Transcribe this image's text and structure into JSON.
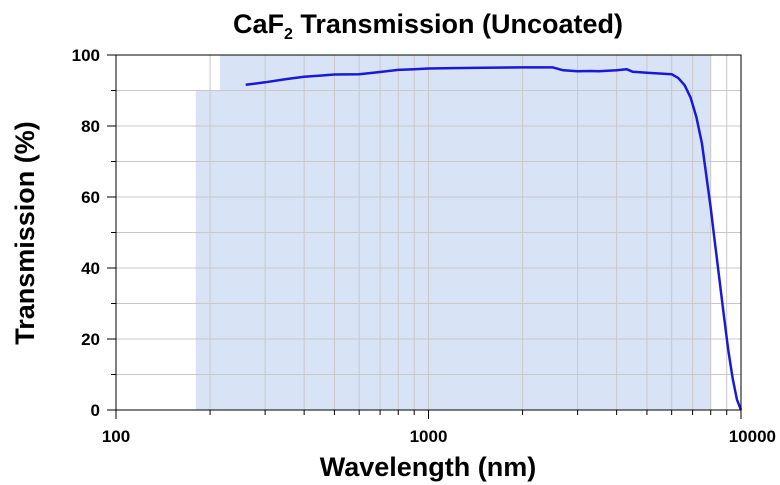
{
  "chart_data": {
    "type": "line",
    "title": {
      "prefix": "CaF",
      "subscript": "2",
      "suffix": " Transmission (Uncoated)"
    },
    "xlabel": "Wavelength (nm)",
    "ylabel": "Transmission (%)",
    "x_scale": "log",
    "xlim": [
      100,
      10000
    ],
    "ylim": [
      0,
      100
    ],
    "x_ticks": [
      {
        "value": 100,
        "label": "100"
      },
      {
        "value": 1000,
        "label": "1000"
      },
      {
        "value": 10000,
        "label": "10000"
      }
    ],
    "y_ticks": [
      {
        "value": 0,
        "label": "0"
      },
      {
        "value": 20,
        "label": "20"
      },
      {
        "value": 40,
        "label": "40"
      },
      {
        "value": 60,
        "label": "60"
      },
      {
        "value": 80,
        "label": "80"
      },
      {
        "value": 100,
        "label": "100"
      }
    ],
    "grid": true,
    "shaded_region": {
      "x_range": [
        180,
        8000
      ],
      "color": "#d9e3f6",
      "notch": {
        "x_range": [
          180,
          215
        ],
        "y_from": 90
      }
    },
    "series": [
      {
        "color": "#1a1ad6",
        "x": [
          260,
          300,
          350,
          400,
          450,
          500,
          600,
          700,
          800,
          900,
          1000,
          1200,
          1500,
          2000,
          2500,
          2700,
          3000,
          3300,
          3500,
          4000,
          4300,
          4500,
          5000,
          6000,
          6300,
          6600,
          6900,
          7200,
          7500,
          7800,
          8000,
          8200,
          8500,
          8800,
          9100,
          9400,
          9700,
          10000
        ],
        "y": [
          91.6,
          92.3,
          93.2,
          93.9,
          94.2,
          94.5,
          94.6,
          95.2,
          95.8,
          96.0,
          96.2,
          96.3,
          96.4,
          96.5,
          96.5,
          95.7,
          95.4,
          95.5,
          95.4,
          95.7,
          96.0,
          95.3,
          95.0,
          94.6,
          93.5,
          91.5,
          88.0,
          82.5,
          75.0,
          64.0,
          57.0,
          49.0,
          38.0,
          27.0,
          17.0,
          9.0,
          3.0,
          0.0
        ]
      }
    ]
  }
}
